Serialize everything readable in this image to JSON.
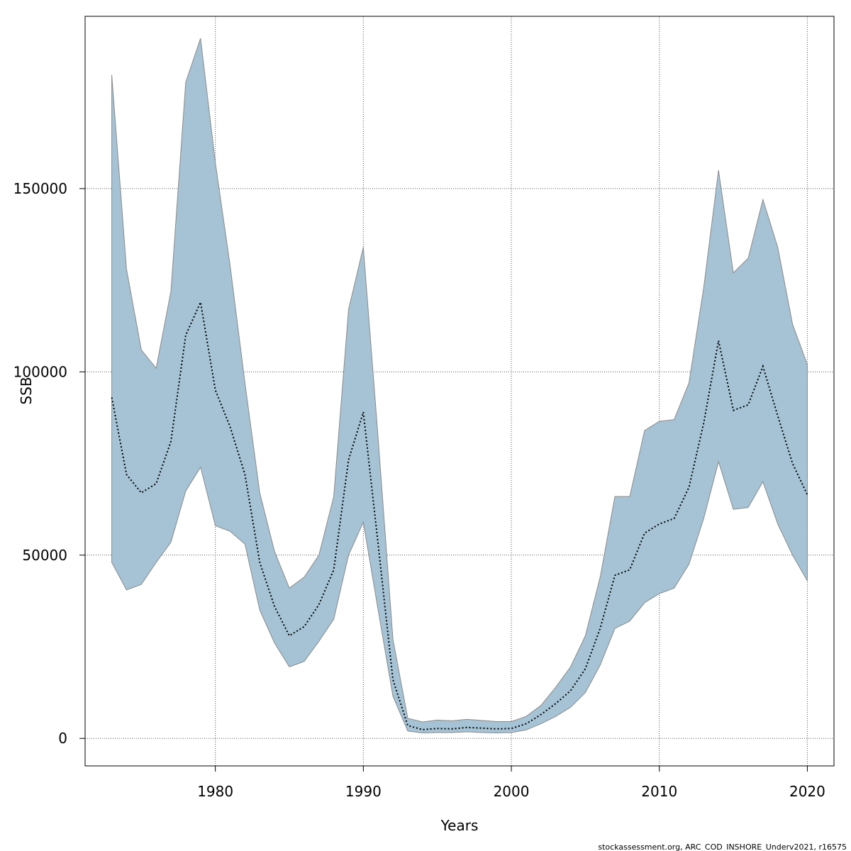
{
  "chart_data": {
    "type": "area",
    "xlabel": "Years",
    "ylabel": "SSB",
    "xlim": [
      1971.2,
      2021.8
    ],
    "ylim": [
      -7500,
      197000
    ],
    "x_ticks": [
      1980,
      1990,
      2000,
      2010,
      2020
    ],
    "y_ticks": [
      0,
      50000,
      100000,
      150000
    ],
    "grid": true,
    "credit": "stockassessment.org, ARC_COD_INSHORE_Underv2021, r16575",
    "colors": {
      "band": "#a5c3d5",
      "band_edge": "#8a8a8a",
      "line": "#000000",
      "grid": "#555555"
    },
    "years": [
      1973,
      1974,
      1975,
      1976,
      1977,
      1978,
      1979,
      1980,
      1981,
      1982,
      1983,
      1984,
      1985,
      1986,
      1987,
      1988,
      1989,
      1990,
      1991,
      1992,
      1993,
      1994,
      1995,
      1996,
      1997,
      1998,
      1999,
      2000,
      2001,
      2002,
      2003,
      2004,
      2005,
      2006,
      2007,
      2008,
      2009,
      2010,
      2011,
      2012,
      2013,
      2014,
      2015,
      2016,
      2017,
      2018,
      2019,
      2020
    ],
    "series": [
      {
        "role": "upper",
        "values": [
          181000,
          128000,
          106000,
          101000,
          122000,
          179000,
          191000,
          157000,
          129000,
          97000,
          67000,
          51000,
          41000,
          44000,
          50000,
          66000,
          117000,
          134000,
          82000,
          27000,
          5500,
          4500,
          5000,
          4800,
          5200,
          4900,
          4600,
          4600,
          6000,
          9000,
          14000,
          19500,
          28000,
          44000,
          66000,
          66000,
          84000,
          86500,
          87000,
          97000,
          123000,
          155000,
          127000,
          131000,
          147000,
          134000,
          113000,
          102000
        ]
      },
      {
        "role": "estimate",
        "values": [
          93000,
          72000,
          67000,
          69500,
          81000,
          110000,
          119000,
          95000,
          85000,
          72000,
          48000,
          36000,
          28000,
          30500,
          36500,
          46000,
          76000,
          89000,
          53000,
          16000,
          3500,
          2400,
          2700,
          2600,
          3000,
          2800,
          2600,
          2700,
          4000,
          6500,
          9500,
          13000,
          19000,
          30000,
          44500,
          46000,
          56000,
          58500,
          60000,
          68500,
          86000,
          108500,
          89500,
          91000,
          101500,
          88000,
          75000,
          66500
        ]
      },
      {
        "role": "lower",
        "values": [
          48000,
          40500,
          42000,
          48000,
          53500,
          67500,
          74000,
          58000,
          56500,
          53000,
          35000,
          26000,
          19500,
          21000,
          26500,
          32500,
          50000,
          59000,
          35000,
          11500,
          2000,
          1500,
          1600,
          1600,
          1800,
          1600,
          1500,
          1600,
          2300,
          4000,
          6000,
          8500,
          12500,
          20000,
          30000,
          32000,
          37000,
          39500,
          41000,
          47500,
          60000,
          75500,
          62500,
          63000,
          70000,
          58500,
          50000,
          43000
        ]
      }
    ]
  }
}
